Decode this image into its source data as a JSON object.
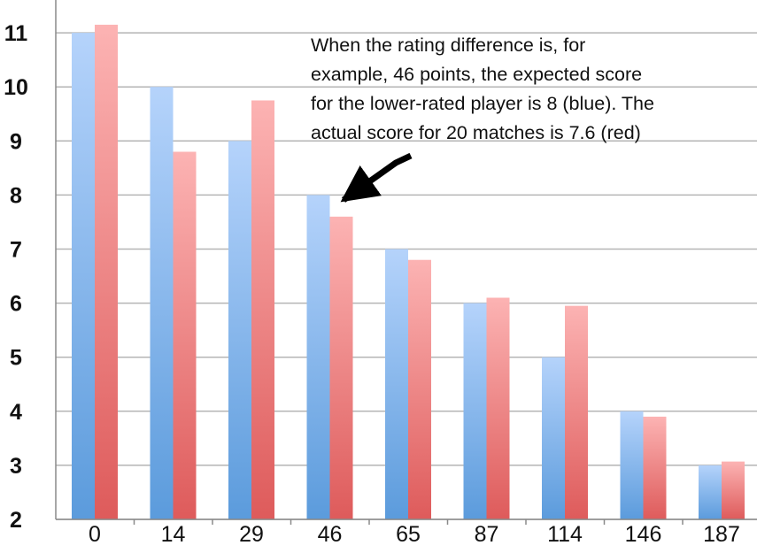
{
  "chart_data": {
    "type": "bar",
    "title": "",
    "xlabel": "",
    "ylabel": "",
    "categories": [
      "0",
      "14",
      "29",
      "46",
      "65",
      "87",
      "114",
      "146",
      "187"
    ],
    "series": [
      {
        "values": [
          11,
          10,
          9,
          8,
          7,
          6,
          5,
          4,
          3
        ]
      },
      {
        "values": [
          11.15,
          8.8,
          9.75,
          7.6,
          6.8,
          6.1,
          5.95,
          3.9,
          3.07
        ]
      }
    ],
    "ylim": [
      2,
      11.5
    ],
    "yticks": [
      2,
      3,
      4,
      5,
      6,
      7,
      8,
      9,
      10,
      11
    ],
    "ytick_labels": [
      "2",
      "3",
      "4",
      "5",
      "6",
      "7",
      "8",
      "9",
      "10",
      "11"
    ],
    "grid": true,
    "legend": "none",
    "colors": {
      "series_1": "#5b9bdc",
      "series_2": "#de5b5b",
      "gridline": "#b5b5b5"
    },
    "annotation": {
      "lines": [
        "When the rating difference is, for",
        "example, 46 points, the expected score",
        "for the lower-rated player is 8 (blue).  The",
        "actual score for 20 matches is 7.6 (red)"
      ],
      "points_to_category": "46"
    }
  }
}
